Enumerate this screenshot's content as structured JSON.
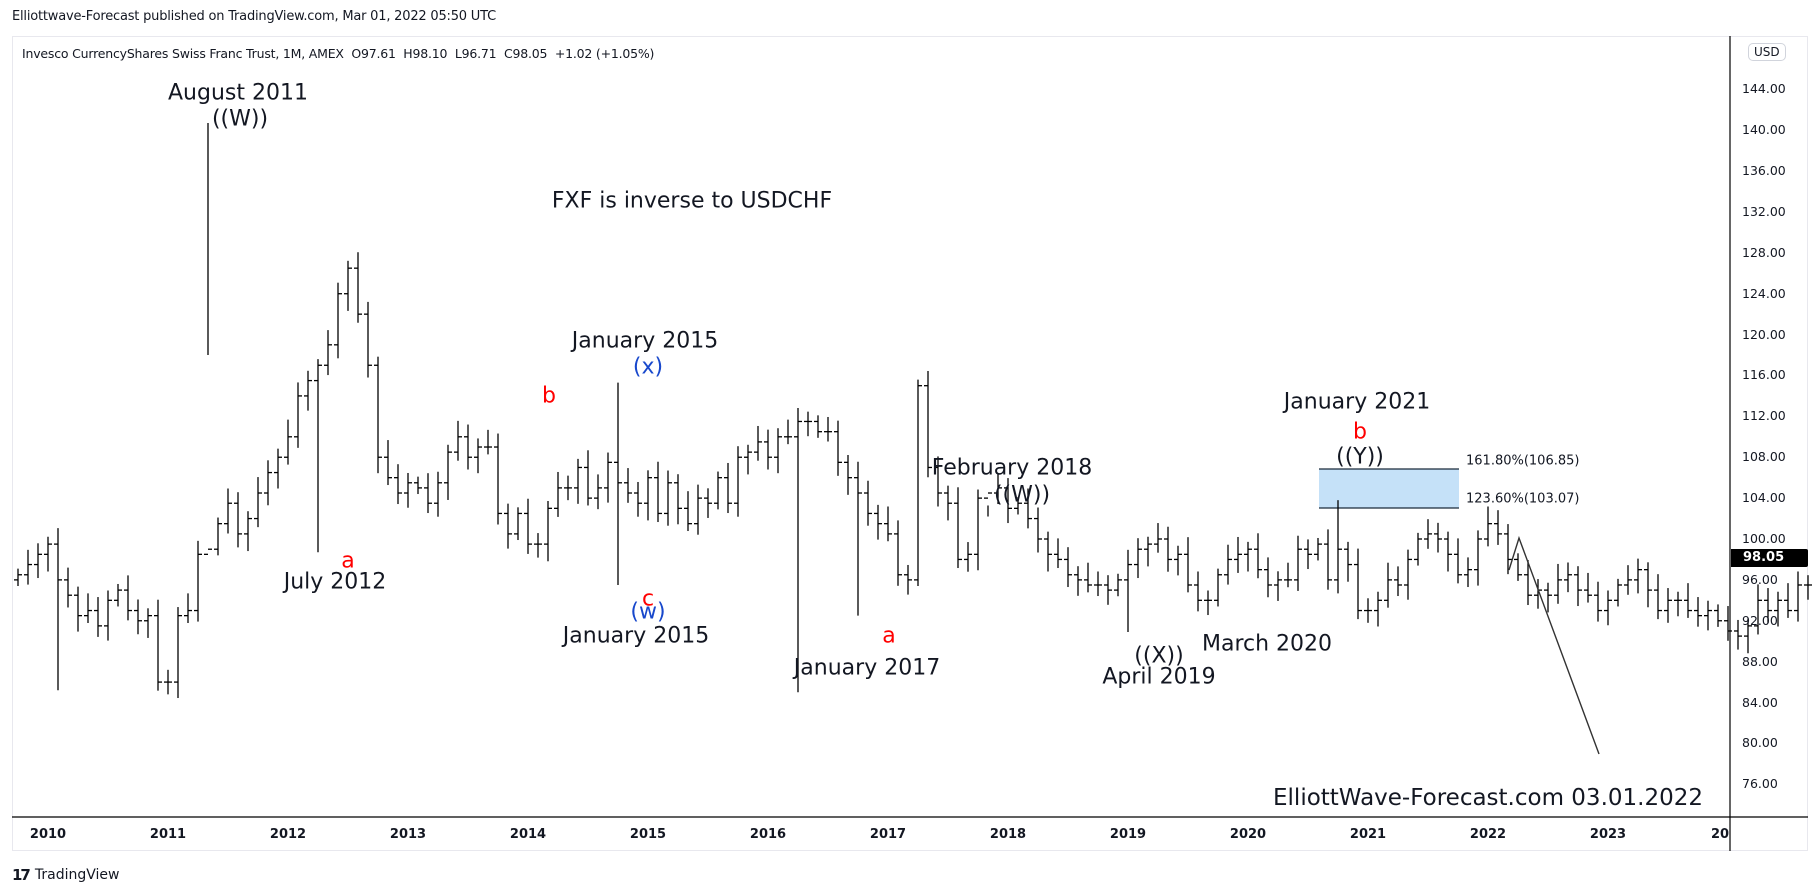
{
  "header": {
    "published": "Elliottwave-Forecast published on TradingView.com, Mar 01, 2022 05:50 UTC"
  },
  "legend": {
    "symbol": "Invesco CurrencyShares Swiss Franc Trust, 1M, AMEX",
    "open": "O97.61",
    "high": "H98.10",
    "low": "L96.71",
    "close": "C98.05",
    "change": "+1.02 (+1.05%)"
  },
  "price_axis": {
    "currency": "USD",
    "labels": [
      "144.00",
      "140.00",
      "136.00",
      "132.00",
      "128.00",
      "124.00",
      "120.00",
      "116.00",
      "112.00",
      "108.00",
      "104.00",
      "100.00",
      "96.00",
      "92.00",
      "88.00",
      "84.00",
      "80.00",
      "76.00"
    ],
    "last_price": "98.05"
  },
  "time_axis": {
    "labels": [
      "2010",
      "2011",
      "2012",
      "2013",
      "2014",
      "2015",
      "2016",
      "2017",
      "2018",
      "2019",
      "2020",
      "2021",
      "2022",
      "2023",
      "20"
    ]
  },
  "annotations": {
    "title_note": "FXF is inverse to USDCHF",
    "aug2011": "August 2011",
    "aug2011_wave": "((W))",
    "jul2012": "July 2012",
    "jul2012_wave": "a",
    "b2014": "b",
    "jan2015_top": "January 2015",
    "jan2015_top_wave": "(x)",
    "jan2015_bottom": "January 2015",
    "jan2015_c": "c",
    "jan2015_w": "(w)",
    "jan2017": "January 2017",
    "jan2017_wave": "a",
    "feb2018": "February 2018",
    "feb2018_wave": "((W))",
    "apr2019": "April 2019",
    "apr2019_wave": "((X))",
    "mar2020": "March 2020",
    "jan2021": "January 2021",
    "jan2021_b": "b",
    "jan2021_wave": "((Y))",
    "fib_161": "161.80%(106.85)",
    "fib_123": "123.60%(103.07)",
    "watermark": "ElliottWave-Forecast.com 03.01.2022"
  },
  "footer": {
    "brand": "TradingView",
    "logo": "17"
  },
  "colors": {
    "bars": "#000000",
    "fib_zone": "#c5e1f8",
    "fib_border": "#1a2a3a",
    "wave_red": "#ff0000",
    "wave_blue": "#1848cc"
  },
  "chart_data": {
    "type": "bar",
    "title": "Invesco CurrencyShares Swiss Franc Trust (FXF), 1M, AMEX",
    "xlabel": "",
    "ylabel": "USD",
    "ylim": [
      74,
      146
    ],
    "grid": false,
    "start": "2010-01",
    "interval": "1M",
    "closes": [
      96.5,
      97.5,
      98.5,
      99.5,
      96,
      94.5,
      92.5,
      93,
      91.5,
      94,
      95,
      93,
      92,
      92.5,
      86,
      86,
      92.5,
      93,
      98.5,
      99,
      101.5,
      103.5,
      100.5,
      102,
      104.5,
      106.5,
      108,
      110,
      114,
      115.5,
      117,
      119,
      124,
      126.5,
      122,
      117,
      108,
      106,
      104.5,
      105.5,
      105,
      103.5,
      105.5,
      108.5,
      110,
      108,
      109,
      109,
      102.5,
      100.5,
      102.5,
      99.5,
      99.5,
      103,
      105,
      105,
      107,
      104,
      105,
      107.5,
      105.5,
      104.5,
      103.5,
      106,
      102.5,
      105.5,
      103,
      101.5,
      104,
      103.5,
      106,
      103.5,
      108,
      108.5,
      109.5,
      108,
      110,
      110,
      111.5,
      111.5,
      110.5,
      110.5,
      107.5,
      106,
      104.5,
      102.5,
      101.5,
      100.5,
      96.5,
      96,
      115,
      107,
      104.5,
      103.5,
      98,
      98.5,
      104,
      104.5,
      105,
      103,
      103.5,
      102,
      100,
      98.5,
      98,
      96.5,
      96,
      95.5,
      95.5,
      95,
      96,
      97.5,
      99,
      99.5,
      100,
      98,
      98.5,
      95.5,
      94,
      94,
      96.5,
      98,
      98.5,
      99,
      97,
      95.5,
      96,
      96,
      99,
      98.5,
      99.5,
      96,
      99,
      97.5,
      93,
      93,
      94,
      96,
      95.5,
      98,
      100,
      100.5,
      100,
      98.5,
      96.5,
      97,
      100,
      101.5,
      100.5,
      98,
      96.5,
      94.5,
      95,
      94.5,
      96,
      96.5,
      95,
      94.5,
      93,
      94,
      95.5,
      96,
      97,
      95,
      93,
      94,
      94,
      93,
      92.5,
      93,
      92,
      91,
      90.5,
      91.5,
      94,
      93,
      94,
      93,
      95.5,
      95.5,
      96.5,
      95,
      97,
      97.5,
      96,
      97.5,
      100,
      98,
      98.5,
      98.5,
      99.5,
      101,
      103,
      103,
      101.5,
      100,
      100.5,
      100.5,
      101,
      102.5,
      103,
      103.5,
      101.5,
      99.5,
      98.5,
      96,
      97,
      100,
      101,
      97,
      97,
      96,
      96,
      97,
      97.5,
      97,
      97.5,
      98.05
    ],
    "key_points": [
      {
        "label": "August 2011 ((W))",
        "date": "2011-08",
        "price": 140.7
      },
      {
        "label": "July 2012 a",
        "date": "2012-07",
        "price": 98.7
      },
      {
        "label": "b",
        "date": "2014-03",
        "price": 111.8
      },
      {
        "label": "January 2015 (x)",
        "date": "2015-01",
        "price": 115.3
      },
      {
        "label": "January 2015 c (w)",
        "date": "2015-01",
        "price": 95.5
      },
      {
        "label": "January 2017 a",
        "date": "2017-01",
        "price": 92.5
      },
      {
        "label": "February 2018 ((W))",
        "date": "2018-02",
        "price": 102.2
      },
      {
        "label": "April 2019 ((X))",
        "date": "2019-04",
        "price": 90.9
      },
      {
        "label": "March 2020",
        "date": "2020-03",
        "price": 100.2
      },
      {
        "label": "January 2021 b ((Y))",
        "date": "2021-01",
        "price": 103.8
      }
    ],
    "fib_zone": {
      "upper": 106.85,
      "lower": 103.07,
      "upper_label": "161.80%(106.85)",
      "lower_label": "123.60%(103.07)"
    },
    "projection": [
      {
        "date": "2022-03",
        "price": 97.0
      },
      {
        "date": "2022-04",
        "price": 100.1
      },
      {
        "date": "2023-01",
        "price": 79.0
      }
    ],
    "last": 98.05
  }
}
